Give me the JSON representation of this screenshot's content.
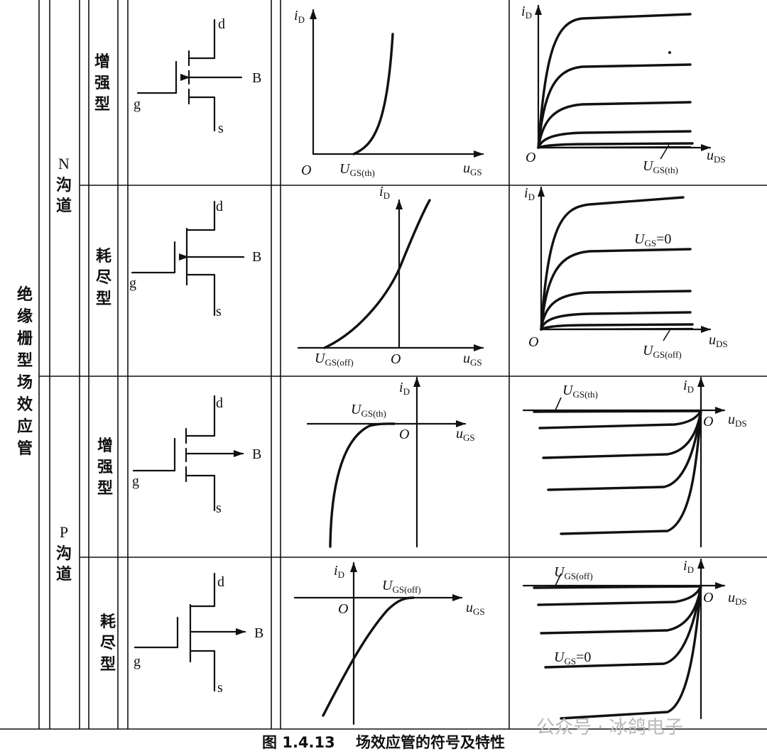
{
  "labels": {
    "category": "绝缘栅型场效应管",
    "n_channel": {
      "letter": "N",
      "word": "沟道"
    },
    "p_channel": {
      "letter": "P",
      "word": "沟道"
    },
    "enhancement": "增强型",
    "depletion": "耗尽型"
  },
  "terminals": {
    "drain": "d",
    "source": "s",
    "gate": "g",
    "body": "B"
  },
  "axes": {
    "origin": "O",
    "current": {
      "sym": "i",
      "sub": "D"
    },
    "gate_voltage": {
      "sym": "u",
      "sub": "GS"
    },
    "drain_voltage": {
      "sym": "u",
      "sub": "DS"
    }
  },
  "annotations": {
    "threshold": {
      "sym": "U",
      "sub": "GS(th)"
    },
    "cutoff": {
      "sym": "U",
      "sub": "GS(off)"
    },
    "ugs_zero": {
      "sym": "U",
      "sub": "GS",
      "suffix": "=0"
    }
  },
  "caption": {
    "figure": "图 1.4.13",
    "title": "场效应管的符号及特性"
  },
  "watermark": "公众号 · 冰鸽电子"
}
